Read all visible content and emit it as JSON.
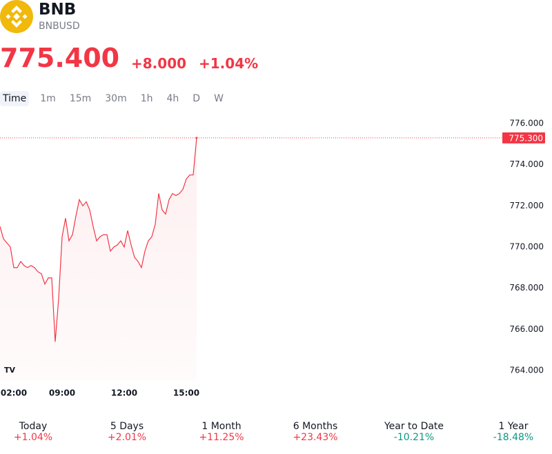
{
  "header": {
    "name": "BNB",
    "symbol": "BNBUSD",
    "price": "775.400",
    "change": "+8.000",
    "change_percent": "+1.04%"
  },
  "intervals": [
    "Time",
    "1m",
    "15m",
    "30m",
    "1h",
    "4h",
    "D",
    "W"
  ],
  "selected_interval": 0,
  "chart_data": {
    "type": "area",
    "categories": [
      null,
      null,
      null,
      null,
      "02:00",
      null,
      null,
      null,
      null,
      null,
      null,
      null,
      null,
      null,
      null,
      null,
      null,
      null,
      "09:00",
      null,
      null,
      null,
      null,
      null,
      null,
      null,
      null,
      null,
      null,
      null,
      null,
      null,
      null,
      null,
      null,
      null,
      "12:00",
      null,
      null,
      null,
      null,
      null,
      null,
      null,
      null,
      null,
      null,
      null,
      null,
      null,
      null,
      null,
      null,
      null,
      "15:00",
      null,
      null,
      null
    ],
    "series": [
      {
        "name": "BNBUSD",
        "color": "#f23645",
        "values": [
          771.0,
          770.4,
          770.2,
          770.0,
          769.0,
          769.0,
          769.3,
          769.1,
          769.0,
          769.1,
          769.0,
          768.8,
          768.7,
          768.2,
          768.5,
          768.5,
          765.4,
          767.5,
          770.5,
          771.4,
          770.3,
          770.6,
          771.5,
          772.3,
          772.0,
          772.2,
          771.8,
          771.0,
          770.3,
          770.5,
          770.6,
          770.6,
          769.8,
          770.0,
          770.1,
          770.3,
          770.0,
          770.8,
          770.1,
          769.5,
          769.3,
          769.0,
          769.8,
          770.3,
          770.5,
          771.1,
          772.6,
          771.8,
          771.6,
          772.3,
          772.6,
          772.5,
          772.6,
          772.8,
          773.3,
          773.5,
          773.5,
          775.3
        ]
      }
    ],
    "ylim": [
      763.5,
      776.3
    ],
    "yticks": [
      {
        "value": 764,
        "label": "764.000"
      },
      {
        "value": 766,
        "label": "766.000"
      },
      {
        "value": 768,
        "label": "768.000"
      },
      {
        "value": 770,
        "label": "770.000"
      },
      {
        "value": 772,
        "label": "772.000"
      },
      {
        "value": 774,
        "label": "774.000"
      },
      {
        "value": 776,
        "label": "776.000"
      }
    ],
    "price_line": {
      "value": 775.3,
      "label": "775.300"
    },
    "grid": false
  },
  "performance": [
    {
      "period": "Today",
      "value": "+1.04%",
      "color": "#f23645"
    },
    {
      "period": "5 Days",
      "value": "+2.01%",
      "color": "#f23645"
    },
    {
      "period": "1 Month",
      "value": "+11.25%",
      "color": "#f23645"
    },
    {
      "period": "6 Months",
      "value": "+23.43%",
      "color": "#f23645"
    },
    {
      "period": "Year to Date",
      "value": "-10.21%",
      "color": "#089981"
    },
    {
      "period": "1 Year",
      "value": "-18.48%",
      "color": "#089981"
    }
  ]
}
